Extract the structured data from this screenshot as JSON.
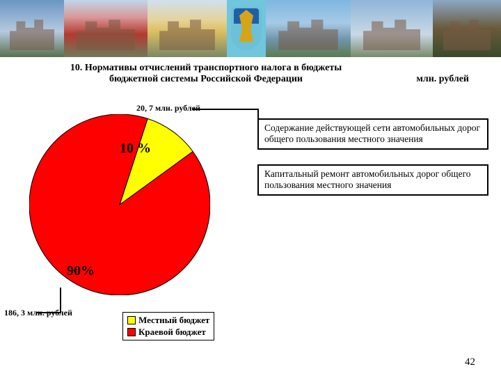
{
  "banner": {
    "cells": [
      {
        "width": 92,
        "bg": "linear-gradient(#6a96c4 0%, #b6c9de 55%, #5a7050 100%)"
      },
      {
        "width": 120,
        "bg": "linear-gradient(#c0d6ea 0%, #d99898 30%, #b43a2f 60%, #6e7a5a 100%)"
      },
      {
        "width": 114,
        "bg": "linear-gradient(#cfe1ef 0%, #e4d39a 35%, #dcbf62 55%, #7b8864 100%)"
      },
      {
        "width": 56,
        "emblem": true
      },
      {
        "width": 122,
        "bg": "linear-gradient(#7db7e2 0%, #a7c9e6 40%, #6e94a8 70%, #5b7a50 100%)"
      },
      {
        "width": 118,
        "bg": "linear-gradient(#bcd6ec 0%, #d6ddcv 45%, #a4b09a 70%, #5a6e48 100%)"
      },
      {
        "width": 98,
        "bg": "linear-gradient(#8aa8c6 0%, #6a5a3a 50%, #3a4a2a 100%)"
      }
    ]
  },
  "title": {
    "line1": "10. Нормативы отчислений транспортного налога в бюджеты",
    "line2": "бюджетной системы Российской Федерации",
    "unit": "млн. рублей"
  },
  "pie": {
    "type": "pie",
    "slices": [
      {
        "label": "10 %",
        "value": 10,
        "color": "#ffff00",
        "stroke": "#000000"
      },
      {
        "label": "90%",
        "value": 90,
        "color": "#ff0000",
        "stroke": "#000000"
      }
    ],
    "start_angle_deg": -72,
    "radius": 130,
    "stroke_width": 1,
    "background_color": "#ffffff",
    "label_fontsize": 20,
    "label_fontweight": "bold"
  },
  "callouts": {
    "top": "20, 7 млн. рублей",
    "bottom": "186, 3 млн. рублей"
  },
  "boxes": {
    "b1": "Содержание действующей сети автомобильных дорог общего пользования местного значения",
    "b2": "Капитальный ремонт автомобильных дорог общего пользования местного значения"
  },
  "legend": {
    "items": [
      {
        "label": "Местный бюджет",
        "color": "#ffff00"
      },
      {
        "label": "Краевой бюджет",
        "color": "#ff0000"
      }
    ]
  },
  "page_number": "42",
  "colors": {
    "text": "#000000",
    "box_border": "#000000"
  }
}
